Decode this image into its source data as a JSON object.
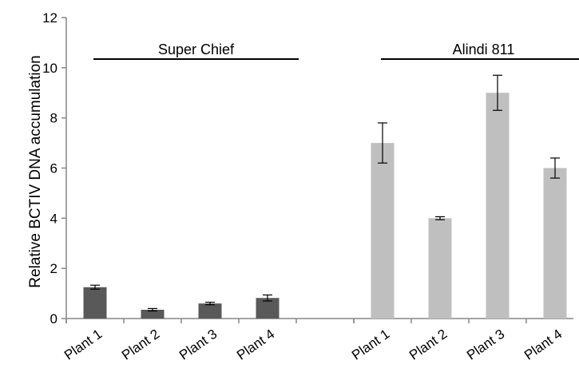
{
  "chart_data": {
    "type": "bar",
    "title": "",
    "xlabel": "",
    "ylabel": "Relative BCTIV DNA accumulation",
    "ylim": [
      0,
      12
    ],
    "yticks": [
      0,
      2,
      4,
      6,
      8,
      10,
      12
    ],
    "grid": false,
    "groups": [
      {
        "name": "Super Chief",
        "color": "#595959",
        "categories": [
          "Plant 1",
          "Plant 2",
          "Plant 3",
          "Plant 4"
        ],
        "values": [
          1.25,
          0.35,
          0.6,
          0.82
        ],
        "errors": [
          0.08,
          0.05,
          0.05,
          0.12
        ]
      },
      {
        "name": "Alindi 811",
        "color": "#bfbfbf",
        "categories": [
          "Plant 1",
          "Plant 2",
          "Plant 3",
          "Plant 4"
        ],
        "values": [
          7.0,
          4.0,
          9.0,
          6.0
        ],
        "errors": [
          0.8,
          0.06,
          0.7,
          0.4
        ]
      }
    ]
  }
}
